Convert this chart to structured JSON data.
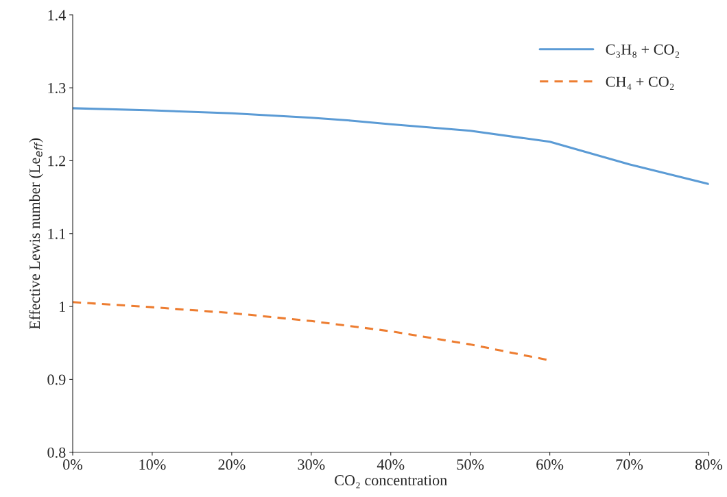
{
  "chart_data": {
    "type": "line",
    "xlabel": "CO₂ concentration",
    "ylabel": "Effective Lewis number (Le$_{eff}$)",
    "series": [
      {
        "name": "C₃H₈ + CO₂",
        "color": "#5b9bd5",
        "line_style": "solid",
        "x": [
          0,
          10,
          20,
          30,
          35,
          40,
          50,
          60,
          70,
          80
        ],
        "values": [
          1.272,
          1.269,
          1.265,
          1.259,
          1.255,
          1.25,
          1.241,
          1.226,
          1.195,
          1.168
        ]
      },
      {
        "name": "CH₄ + CO₂",
        "color": "#ed7d31",
        "line_style": "dashed",
        "x": [
          0,
          10,
          20,
          30,
          40,
          50,
          60
        ],
        "values": [
          1.006,
          0.999,
          0.991,
          0.98,
          0.966,
          0.948,
          0.926
        ]
      }
    ],
    "xlim": [
      0,
      80
    ],
    "xticks": [
      {
        "value": 0,
        "label": "0%"
      },
      {
        "value": 10,
        "label": "10%"
      },
      {
        "value": 20,
        "label": "20%"
      },
      {
        "value": 30,
        "label": "30%"
      },
      {
        "value": 40,
        "label": "40%"
      },
      {
        "value": 50,
        "label": "50%"
      },
      {
        "value": 60,
        "label": "60%"
      },
      {
        "value": 70,
        "label": "70%"
      },
      {
        "value": 80,
        "label": "80%"
      }
    ],
    "ylim": [
      0.8,
      1.4
    ],
    "yticks": [
      0.8,
      0.9,
      1,
      1.1,
      1.2,
      1.3,
      1.4
    ],
    "grid": false,
    "legend": "top right"
  }
}
